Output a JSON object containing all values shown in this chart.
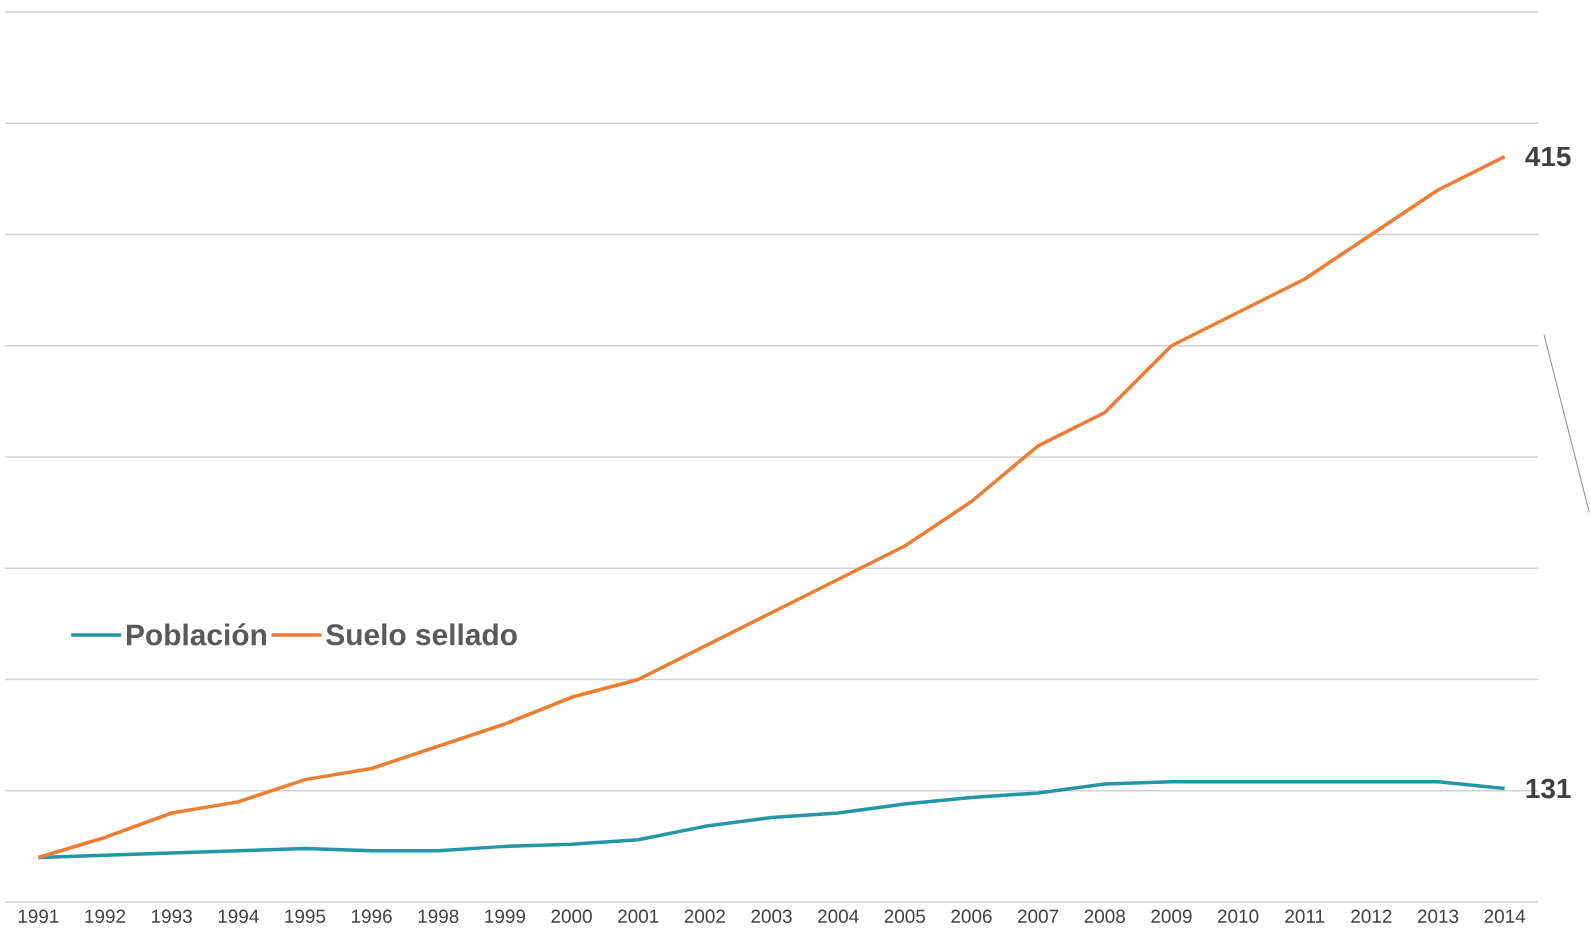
{
  "chart_data": {
    "type": "line",
    "categories": [
      "1991",
      "1992",
      "1993",
      "1994",
      "1995",
      "1996",
      "1998",
      "1999",
      "2000",
      "2001",
      "2002",
      "2003",
      "2004",
      "2005",
      "2006",
      "2007",
      "2008",
      "2009",
      "2010",
      "2011",
      "2012",
      "2013",
      "2014"
    ],
    "series": [
      {
        "name": "Población",
        "color": "#2596a5",
        "values": [
          100,
          101,
          102,
          103,
          104,
          103,
          103,
          105,
          106,
          108,
          114,
          118,
          120,
          124,
          127,
          129,
          133,
          134,
          134,
          134,
          134,
          134,
          131
        ],
        "value_labels": [
          null,
          null,
          null,
          null,
          null,
          null,
          null,
          null,
          null,
          null,
          null,
          null,
          null,
          null,
          null,
          null,
          null,
          null,
          null,
          null,
          null,
          null,
          "131"
        ]
      },
      {
        "name": "Suelo sellado",
        "color": "#ed7d31",
        "values": [
          100,
          109,
          120,
          125,
          135,
          140,
          150,
          160,
          172,
          180,
          195,
          210,
          225,
          240,
          260,
          285,
          300,
          330,
          345,
          360,
          380,
          400,
          415
        ],
        "value_labels": [
          null,
          null,
          null,
          null,
          null,
          null,
          null,
          null,
          null,
          null,
          null,
          null,
          null,
          null,
          null,
          null,
          null,
          null,
          null,
          null,
          null,
          null,
          "415"
        ]
      }
    ],
    "ylim": [
      80,
      480
    ],
    "yticks": [
      {
        "value": 80,
        "label": null
      },
      {
        "value": 130,
        "label": null
      },
      {
        "value": 180,
        "label": null
      },
      {
        "value": 230,
        "label": null
      },
      {
        "value": 280,
        "label": null
      },
      {
        "value": 330,
        "label": null
      },
      {
        "value": 380,
        "label": null
      },
      {
        "value": 430,
        "label": null
      },
      {
        "value": 480,
        "label": null
      }
    ],
    "tick_labels": "x",
    "grid": "y",
    "legend": "left",
    "marker": "none",
    "line_style": "solid"
  }
}
